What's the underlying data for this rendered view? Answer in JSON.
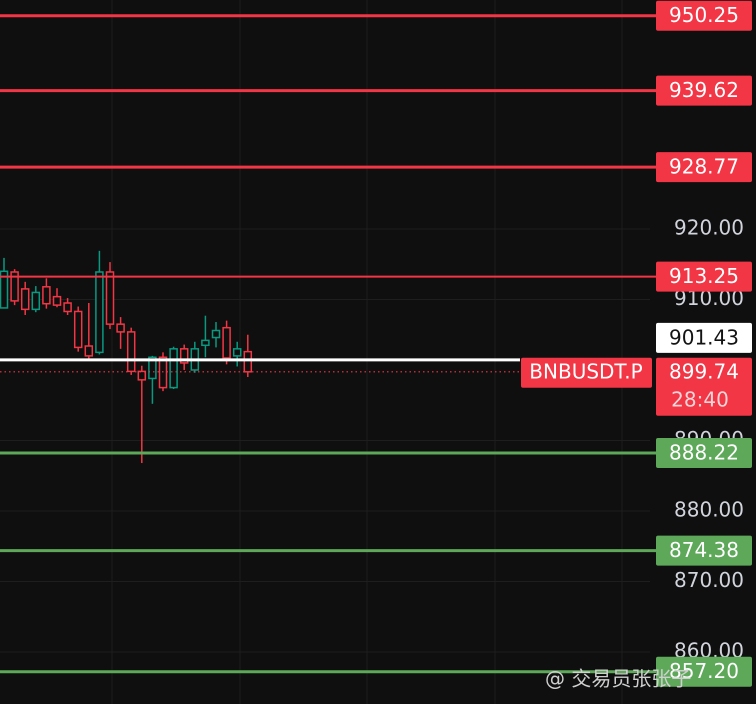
{
  "chart_data": {
    "type": "candlestick",
    "categories": [
      null,
      null,
      null,
      null,
      null,
      null,
      null,
      null,
      null,
      null,
      null,
      null,
      null,
      null,
      null,
      null,
      null,
      null,
      null,
      null,
      null,
      null,
      null,
      null
    ],
    "series": [
      {
        "open": [
          908.8,
          913.9,
          911.5,
          908.6,
          911.8,
          910.4,
          909.5,
          908.3,
          903.4,
          902.5,
          913.9,
          906.5,
          905.4,
          899.8,
          898.8,
          901.8,
          897.5,
          903.0,
          900.0,
          903.5,
          904.6,
          906.0,
          902.0,
          902.6
        ],
        "high": [
          915.9,
          914.3,
          912.5,
          911.9,
          913.0,
          911.6,
          910.2,
          909.0,
          909.5,
          916.9,
          915.3,
          907.5,
          906.0,
          900.6,
          902.0,
          902.5,
          903.3,
          903.6,
          904.0,
          907.7,
          906.8,
          907.0,
          904.0,
          905.0
        ],
        "low": [
          908.8,
          909.2,
          907.8,
          908.2,
          908.7,
          908.9,
          907.8,
          902.6,
          901.5,
          902.2,
          905.8,
          903.0,
          899.3,
          886.8,
          895.2,
          897.0,
          897.3,
          900.0,
          899.6,
          901.8,
          903.2,
          900.8,
          900.5,
          899.0
        ],
        "close": [
          914.0,
          909.8,
          908.6,
          911.0,
          909.4,
          909.2,
          908.3,
          903.2,
          902.0,
          913.9,
          906.5,
          905.4,
          899.8,
          898.6,
          901.8,
          897.5,
          903.0,
          901.0,
          903.0,
          904.2,
          905.6,
          901.7,
          903.0,
          899.74
        ]
      }
    ],
    "up_color": "#089981",
    "down_color": "#f23645",
    "ylim": [
      852.62,
      952.48
    ],
    "yticks": [
      {
        "value": 920,
        "label": "920.00"
      },
      {
        "value": 910,
        "label": "910.00"
      },
      {
        "value": 890,
        "label": "890.00"
      },
      {
        "value": 880,
        "label": "880.00"
      },
      {
        "value": 870,
        "label": "870.00"
      },
      {
        "value": 860,
        "label": "860.00"
      }
    ],
    "grid": true,
    "price_lines": [
      {
        "value": 950.25,
        "color": "#f23645"
      },
      {
        "value": 939.62,
        "color": "#f23645"
      },
      {
        "value": 928.77,
        "color": "#f23645"
      },
      {
        "value": 913.25,
        "color": "#f23645"
      },
      {
        "value": 888.22,
        "color": "#5ea85a"
      },
      {
        "value": 874.38,
        "color": "#5ea85a"
      },
      {
        "value": 857.2,
        "label": "857.20",
        "color": "#5ea85a"
      }
    ],
    "mark_price": 901.43,
    "last_price": {
      "symbol": "BNBUSDT.P",
      "value": 899.74,
      "countdown": "28:40"
    },
    "watermark": "@ 交易员张张子"
  }
}
